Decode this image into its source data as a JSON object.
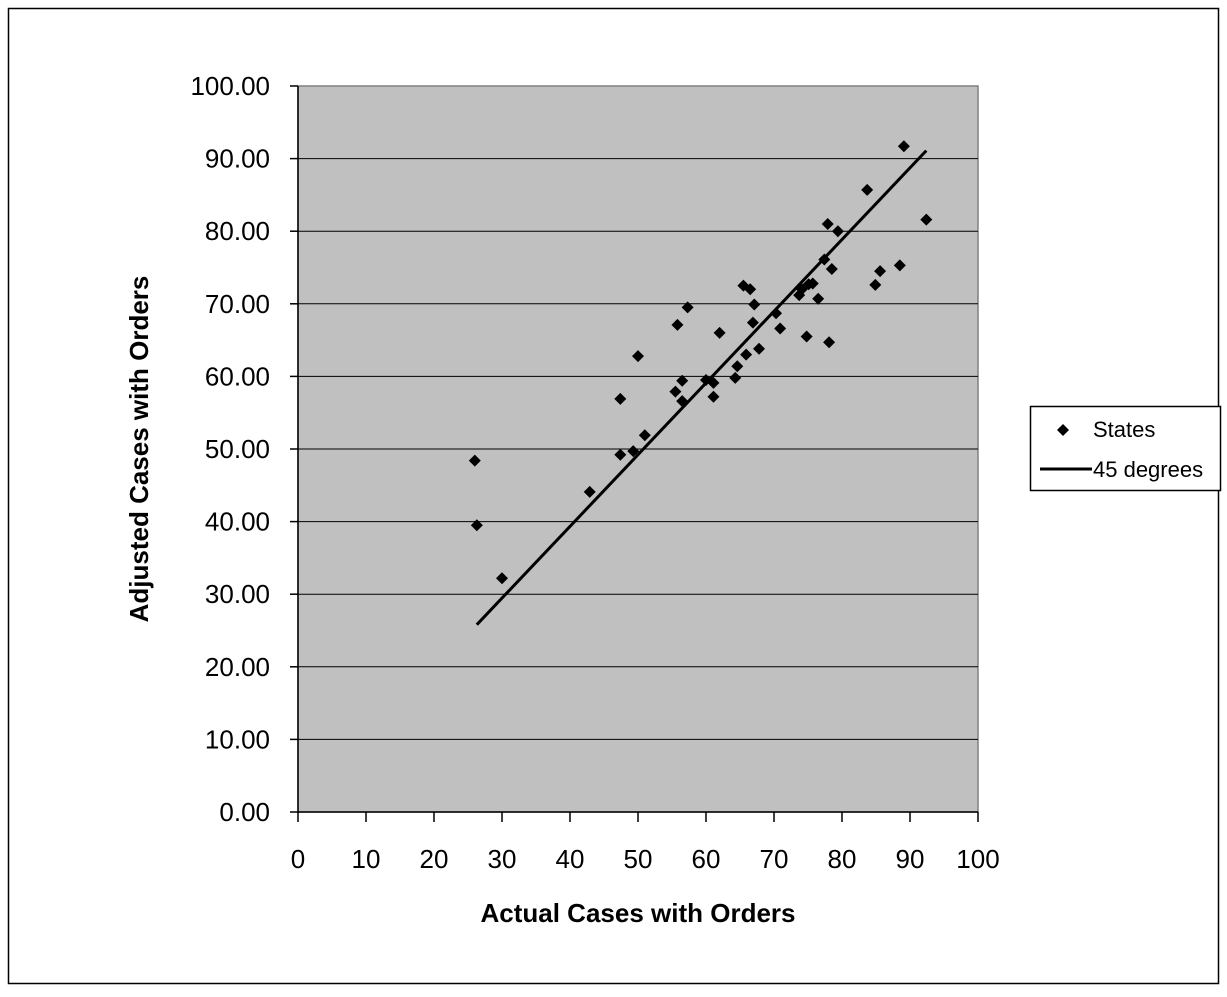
{
  "chart_data": {
    "type": "scatter",
    "title": "",
    "xlabel": "Actual Cases with Orders",
    "ylabel": "Adjusted Cases with Orders",
    "xlim": [
      0,
      100
    ],
    "ylim": [
      0,
      100
    ],
    "x_ticks": [
      "0",
      "10",
      "20",
      "30",
      "40",
      "50",
      "60",
      "70",
      "80",
      "90",
      "100"
    ],
    "y_ticks": [
      "0.00",
      "10.00",
      "20.00",
      "30.00",
      "40.00",
      "50.00",
      "60.00",
      "70.00",
      "80.00",
      "90.00",
      "100.00"
    ],
    "grid": "horizontal",
    "plot_background": "#c0c0c0",
    "legend_position": "right",
    "series": [
      {
        "name": "States",
        "marker": "diamond",
        "color": "#000000",
        "points": [
          [
            26.0,
            48.4
          ],
          [
            26.3,
            39.5
          ],
          [
            30.0,
            32.2
          ],
          [
            42.9,
            44.1
          ],
          [
            47.4,
            49.2
          ],
          [
            47.4,
            56.9
          ],
          [
            49.3,
            49.7
          ],
          [
            50.0,
            62.8
          ],
          [
            51.0,
            51.9
          ],
          [
            55.5,
            57.9
          ],
          [
            55.8,
            67.1
          ],
          [
            56.5,
            59.4
          ],
          [
            56.5,
            56.6
          ],
          [
            57.3,
            69.5
          ],
          [
            60.0,
            59.5
          ],
          [
            61.1,
            57.2
          ],
          [
            61.1,
            59.1
          ],
          [
            62.0,
            66.0
          ],
          [
            64.3,
            59.8
          ],
          [
            64.6,
            61.4
          ],
          [
            65.5,
            72.5
          ],
          [
            65.9,
            63.0
          ],
          [
            66.5,
            72.0
          ],
          [
            66.9,
            67.4
          ],
          [
            67.1,
            69.9
          ],
          [
            67.8,
            63.8
          ],
          [
            70.3,
            68.7
          ],
          [
            70.9,
            66.6
          ],
          [
            73.7,
            71.2
          ],
          [
            74.1,
            72.0
          ],
          [
            74.8,
            65.5
          ],
          [
            75.1,
            72.7
          ],
          [
            75.7,
            72.8
          ],
          [
            76.5,
            70.7
          ],
          [
            77.4,
            76.1
          ],
          [
            77.9,
            81.0
          ],
          [
            78.1,
            64.7
          ],
          [
            78.5,
            74.8
          ],
          [
            79.4,
            80.0
          ],
          [
            83.7,
            85.7
          ],
          [
            84.9,
            72.6
          ],
          [
            85.6,
            74.5
          ],
          [
            88.5,
            75.3
          ],
          [
            89.1,
            91.7
          ],
          [
            92.4,
            81.6
          ]
        ]
      },
      {
        "name": "45 degrees",
        "style": "line",
        "color": "#000000",
        "points": [
          [
            26.3,
            25.8
          ],
          [
            92.4,
            91.1
          ]
        ]
      }
    ]
  }
}
